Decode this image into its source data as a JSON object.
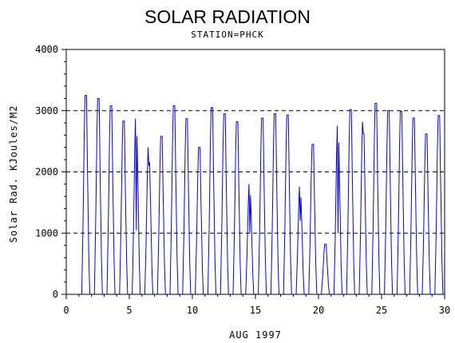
{
  "chart_data": {
    "type": "line",
    "title": "SOLAR RADIATION",
    "subtitle": "STATION=PHCK",
    "xlabel": "AUG 1997",
    "ylabel": "Solar Rad. KJoules/M2",
    "xlim": [
      0,
      30
    ],
    "ylim": [
      0,
      4000
    ],
    "x_ticks": [
      0,
      5,
      10,
      15,
      20,
      25,
      30
    ],
    "y_ticks": [
      0,
      1000,
      2000,
      3000,
      4000
    ],
    "grid": "horizontal dashed",
    "series": [
      {
        "color": "#0000ff",
        "daily_peaks": [
          {
            "day": 1,
            "peak": 3250,
            "midday_value": 3250
          },
          {
            "day": 2,
            "peak": 3200,
            "midday_value": 3200
          },
          {
            "day": 3,
            "peak": 3080,
            "midday_value": 3080
          },
          {
            "day": 4,
            "peak": 2830,
            "midday_value": 2830
          },
          {
            "day": 5,
            "peak": 2870,
            "midday_value": 1050
          },
          {
            "day": 6,
            "peak": 2400,
            "midday_value": 2100
          },
          {
            "day": 7,
            "peak": 2580,
            "midday_value": 2580
          },
          {
            "day": 8,
            "peak": 3080,
            "midday_value": 3080
          },
          {
            "day": 9,
            "peak": 2870,
            "midday_value": 2870
          },
          {
            "day": 10,
            "peak": 2400,
            "midday_value": 2400
          },
          {
            "day": 11,
            "peak": 3050,
            "midday_value": 3050
          },
          {
            "day": 12,
            "peak": 2950,
            "midday_value": 2950
          },
          {
            "day": 13,
            "peak": 2820,
            "midday_value": 2820
          },
          {
            "day": 14,
            "peak": 1800,
            "midday_value": 1000
          },
          {
            "day": 15,
            "peak": 2880,
            "midday_value": 2880
          },
          {
            "day": 16,
            "peak": 2950,
            "midday_value": 2950
          },
          {
            "day": 17,
            "peak": 2930,
            "midday_value": 2930
          },
          {
            "day": 18,
            "peak": 1760,
            "midday_value": 1200
          },
          {
            "day": 19,
            "peak": 2450,
            "midday_value": 2450
          },
          {
            "day": 20,
            "peak": 820,
            "midday_value": 820
          },
          {
            "day": 21,
            "peak": 2750,
            "midday_value": 1000
          },
          {
            "day": 22,
            "peak": 3020,
            "midday_value": 3020
          },
          {
            "day": 23,
            "peak": 2820,
            "midday_value": 2620
          },
          {
            "day": 24,
            "peak": 3120,
            "midday_value": 3120
          },
          {
            "day": 25,
            "peak": 3000,
            "midday_value": 3000
          },
          {
            "day": 26,
            "peak": 2990,
            "midday_value": 2990
          },
          {
            "day": 27,
            "peak": 2880,
            "midday_value": 2880
          },
          {
            "day": 28,
            "peak": 2620,
            "midday_value": 2620
          },
          {
            "day": 29,
            "peak": 2920,
            "midday_value": 2920
          }
        ]
      }
    ]
  }
}
